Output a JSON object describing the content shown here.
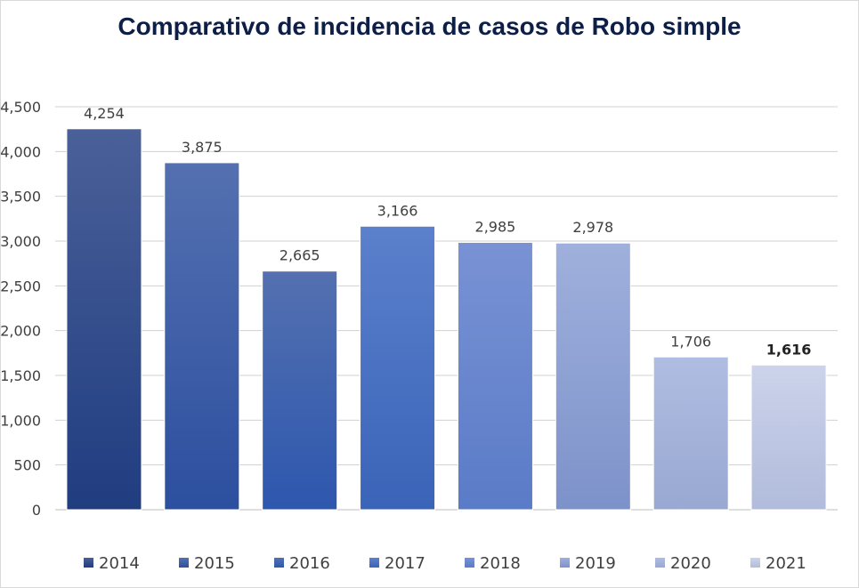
{
  "chart_data": {
    "type": "bar",
    "title": "Comparativo de incidencia de casos de Robo simple",
    "categories": [
      "2014",
      "2015",
      "2016",
      "2017",
      "2018",
      "2019",
      "2020",
      "2021"
    ],
    "values": [
      4254,
      3875,
      2665,
      3166,
      2985,
      2978,
      1706,
      1616
    ],
    "data_labels": [
      "4,254",
      "3,875",
      "2,665",
      "3,166",
      "2,985",
      "2,978",
      "1,706",
      "1,616"
    ],
    "bold_label_index": 7,
    "ylim": [
      0,
      4500
    ],
    "yticks": [
      0,
      500,
      1000,
      1500,
      2000,
      2500,
      3000,
      3500,
      4000,
      4500
    ],
    "ytick_labels": [
      "0",
      "500",
      "1,000",
      "1,500",
      "2,000",
      "2,500",
      "3,000",
      "3,500",
      "4,000",
      "4,500"
    ],
    "grid": true,
    "legend_position": "bottom",
    "colors": [
      [
        "#4a6099",
        "#203d80"
      ],
      [
        "#5470b0",
        "#2c4f9f"
      ],
      [
        "#5470b0",
        "#2d57ae"
      ],
      [
        "#5b80cc",
        "#3a64b8"
      ],
      [
        "#7992d4",
        "#5a7bc7"
      ],
      [
        "#9fb0dc",
        "#7d92ca"
      ],
      [
        "#b0bde2",
        "#99a8d2"
      ],
      [
        "#ccd3ea",
        "#b1bcdc"
      ]
    ]
  }
}
